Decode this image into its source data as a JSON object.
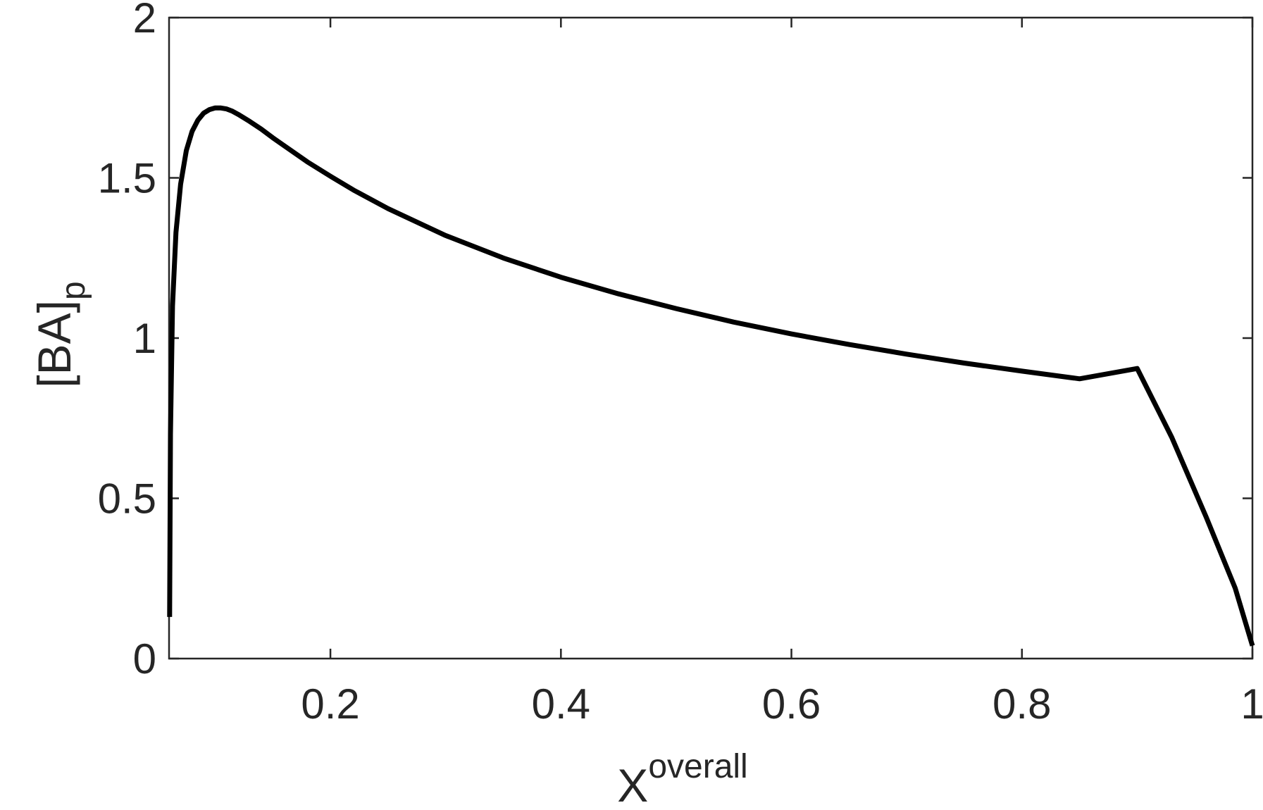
{
  "chart_data": {
    "type": "line",
    "title": "",
    "xlabel": {
      "base": "X",
      "superscript": "overall"
    },
    "ylabel": {
      "base": "[BA]",
      "subscript": "p"
    },
    "xlim": [
      0.06,
      1.0
    ],
    "ylim": [
      0,
      2
    ],
    "xticks": [
      0.2,
      0.4,
      0.6,
      0.8,
      1.0
    ],
    "xtick_labels": [
      "0.2",
      "0.4",
      "0.6",
      "0.8",
      "1"
    ],
    "yticks": [
      0,
      0.5,
      1.0,
      1.5,
      2.0
    ],
    "ytick_labels": [
      "0",
      "0.5",
      "1",
      "1.5",
      "2"
    ],
    "grid": false,
    "box": true,
    "series": [
      {
        "color": "#000000",
        "x": [
          0.0605,
          0.0612,
          0.063,
          0.066,
          0.07,
          0.075,
          0.08,
          0.085,
          0.09,
          0.095,
          0.1,
          0.105,
          0.11,
          0.115,
          0.12,
          0.13,
          0.14,
          0.15,
          0.16,
          0.18,
          0.2,
          0.22,
          0.25,
          0.3,
          0.35,
          0.4,
          0.45,
          0.5,
          0.55,
          0.6,
          0.65,
          0.7,
          0.75,
          0.8,
          0.85,
          0.9,
          0.93,
          0.96,
          0.985,
          1.0
        ],
        "y": [
          0.13,
          0.7,
          1.1,
          1.33,
          1.48,
          1.585,
          1.645,
          1.68,
          1.702,
          1.713,
          1.718,
          1.718,
          1.715,
          1.708,
          1.698,
          1.676,
          1.652,
          1.625,
          1.6,
          1.55,
          1.505,
          1.462,
          1.404,
          1.32,
          1.25,
          1.19,
          1.138,
          1.092,
          1.05,
          1.013,
          0.98,
          0.95,
          0.922,
          0.897,
          0.873,
          0.905,
          0.69,
          0.44,
          0.22,
          0.04
        ]
      }
    ]
  }
}
